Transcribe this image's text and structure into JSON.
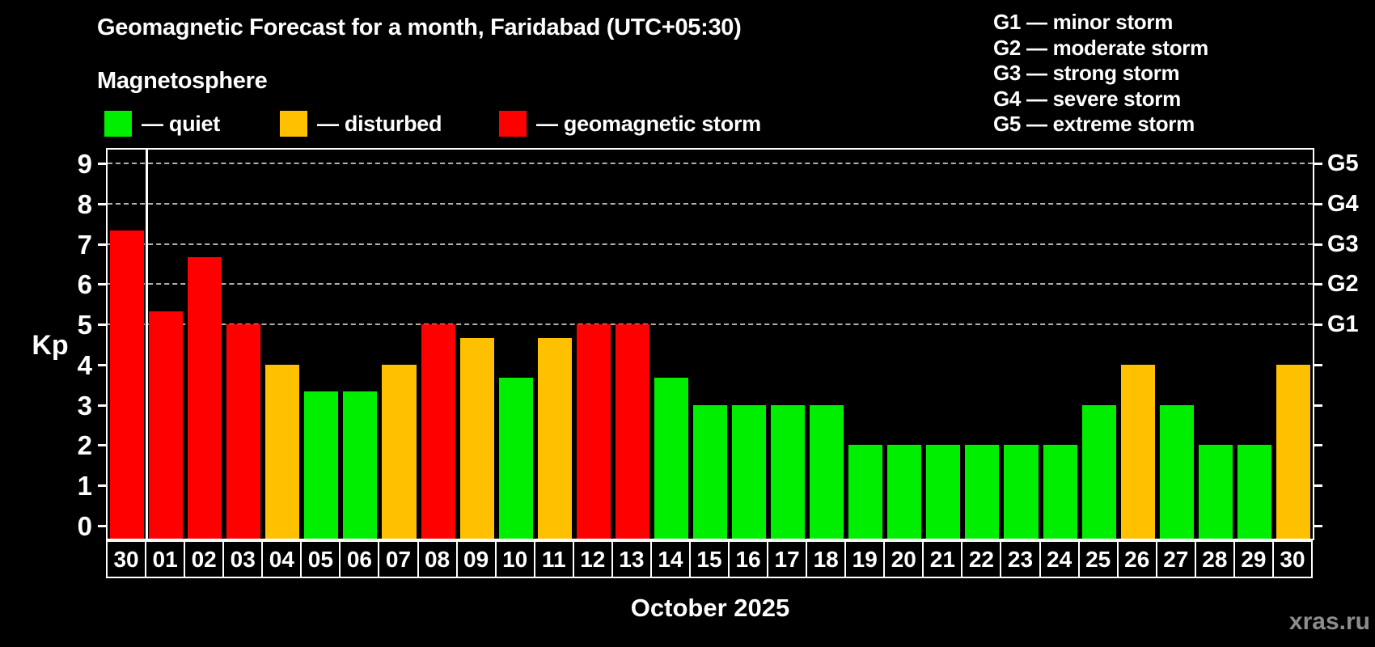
{
  "header": {
    "title": "Geomagnetic Forecast for a month, Faridabad (UTC+05:30)",
    "subtitle": "Magnetosphere"
  },
  "legend": {
    "items": [
      {
        "label": "— quiet",
        "status": "quiet"
      },
      {
        "label": "— disturbed",
        "status": "disturbed"
      },
      {
        "label": "— geomagnetic storm",
        "status": "storm"
      }
    ]
  },
  "g_legend": {
    "items": [
      "G1 — minor storm",
      "G2 — moderate storm",
      "G3 — strong storm",
      "G4 — severe storm",
      "G5 — extreme storm"
    ]
  },
  "axis": {
    "y_label": "Kp",
    "y_ticks": [
      0,
      1,
      2,
      3,
      4,
      5,
      6,
      7,
      8,
      9
    ],
    "right_labels": [
      {
        "kp": 5,
        "label": "G1"
      },
      {
        "kp": 6,
        "label": "G2"
      },
      {
        "kp": 7,
        "label": "G3"
      },
      {
        "kp": 8,
        "label": "G4"
      },
      {
        "kp": 9,
        "label": "G5"
      }
    ]
  },
  "footer": {
    "month_label": "October 2025",
    "watermark": "xras.ru"
  },
  "colors": {
    "quiet": "#00ee00",
    "disturbed": "#ffc000",
    "storm": "#ff0000",
    "grid": "#b0b0b0",
    "axis": "#ffffff",
    "background": "#000000",
    "watermark": "#8d8d8d"
  },
  "chart_data": {
    "type": "bar",
    "title": "Geomagnetic Forecast for a month, Faridabad (UTC+05:30)",
    "xlabel": "October 2025",
    "ylabel": "Kp",
    "ylim": [
      0,
      9.4
    ],
    "grid": "horizontal dashed lines at Kp 5-9 (G1-G5 levels)",
    "legend_position": "top-left",
    "prev_month_columns": 1,
    "gridline_kp": [
      5,
      6,
      7,
      8,
      9
    ],
    "categories": [
      "30",
      "01",
      "02",
      "03",
      "04",
      "05",
      "06",
      "07",
      "08",
      "09",
      "10",
      "11",
      "12",
      "13",
      "14",
      "15",
      "16",
      "17",
      "18",
      "19",
      "20",
      "21",
      "22",
      "23",
      "24",
      "25",
      "26",
      "27",
      "28",
      "29",
      "30"
    ],
    "values": [
      7.33,
      5.33,
      6.67,
      5.0,
      4.0,
      3.33,
      3.33,
      4.0,
      5.0,
      4.67,
      3.67,
      4.67,
      5.0,
      5.0,
      3.67,
      3.0,
      3.0,
      3.0,
      3.0,
      2.0,
      2.0,
      2.0,
      2.0,
      2.0,
      2.0,
      3.0,
      4.0,
      3.0,
      2.0,
      2.0,
      4.0
    ],
    "status": [
      "storm",
      "storm",
      "storm",
      "storm",
      "disturbed",
      "quiet",
      "quiet",
      "disturbed",
      "storm",
      "disturbed",
      "quiet",
      "disturbed",
      "storm",
      "storm",
      "quiet",
      "quiet",
      "quiet",
      "quiet",
      "quiet",
      "quiet",
      "quiet",
      "quiet",
      "quiet",
      "quiet",
      "quiet",
      "quiet",
      "disturbed",
      "quiet",
      "quiet",
      "quiet",
      "disturbed"
    ]
  }
}
